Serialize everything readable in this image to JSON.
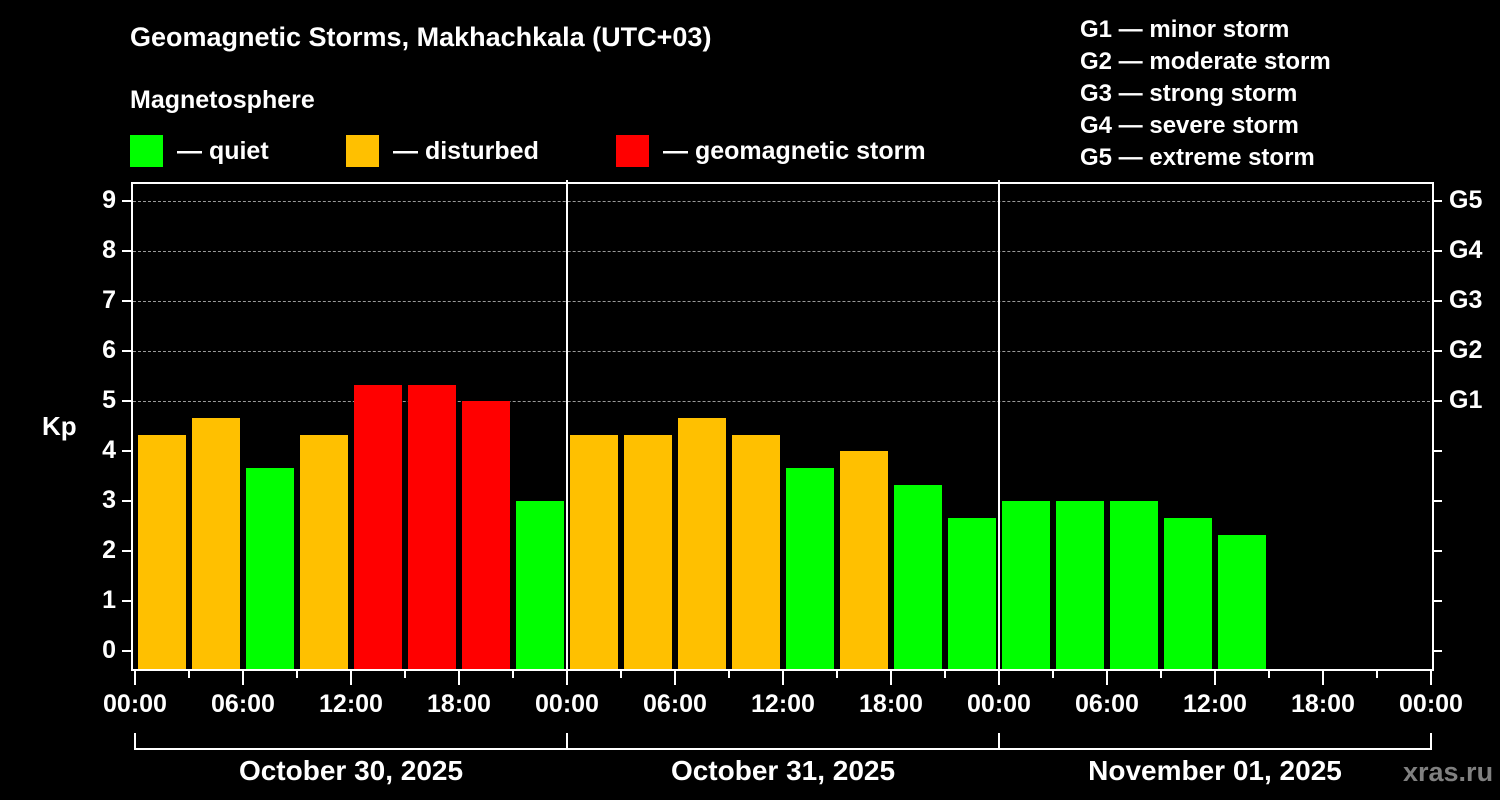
{
  "header": {
    "title": "Geomagnetic Storms, Makhachkala (UTC+03)",
    "subtitle": "Magnetosphere"
  },
  "legend": [
    {
      "label": "— quiet",
      "color": "#00FF00"
    },
    {
      "label": "— disturbed",
      "color": "#FFC000"
    },
    {
      "label": "— geomagnetic storm",
      "color": "#FF0000"
    }
  ],
  "scale": [
    "G1 — minor storm",
    "G2 — moderate storm",
    "G3 — strong storm",
    "G4 — severe storm",
    "G5 — extreme storm"
  ],
  "watermark": "xras.ru",
  "chart_data": {
    "type": "bar",
    "title": "Geomagnetic Storms, Makhachkala (UTC+03)",
    "subtitle": "Magnetosphere",
    "ylabel": "Kp",
    "xlabel": "",
    "ylim": [
      0,
      9
    ],
    "yticks": [
      0,
      1,
      2,
      3,
      4,
      5,
      6,
      7,
      8,
      9
    ],
    "right_axis_labels": [
      {
        "kp": 5,
        "label": "G1"
      },
      {
        "kp": 6,
        "label": "G2"
      },
      {
        "kp": 7,
        "label": "G3"
      },
      {
        "kp": 8,
        "label": "G4"
      },
      {
        "kp": 9,
        "label": "G5"
      }
    ],
    "grid": true,
    "legend_position": "top-left",
    "x_tick_labels": [
      "00:00",
      "06:00",
      "12:00",
      "18:00",
      "00:00",
      "06:00",
      "12:00",
      "18:00",
      "00:00",
      "06:00",
      "12:00",
      "18:00",
      "00:00"
    ],
    "dates": [
      "October 30, 2025",
      "October 31, 2025",
      "November 01, 2025"
    ],
    "interval_hours": 3,
    "categories": [
      "Oct 30 00:00",
      "Oct 30 03:00",
      "Oct 30 06:00",
      "Oct 30 09:00",
      "Oct 30 12:00",
      "Oct 30 15:00",
      "Oct 30 18:00",
      "Oct 30 21:00",
      "Oct 31 00:00",
      "Oct 31 03:00",
      "Oct 31 06:00",
      "Oct 31 09:00",
      "Oct 31 12:00",
      "Oct 31 15:00",
      "Oct 31 18:00",
      "Oct 31 21:00",
      "Nov 01 00:00",
      "Nov 01 03:00",
      "Nov 01 06:00",
      "Nov 01 09:00",
      "Nov 01 12:00"
    ],
    "values": [
      4.33,
      4.67,
      3.67,
      4.33,
      5.33,
      5.33,
      5.0,
      3.0,
      4.33,
      4.33,
      4.67,
      4.33,
      3.67,
      4.0,
      3.33,
      2.67,
      3.0,
      3.0,
      3.0,
      2.67,
      2.33
    ],
    "status": [
      "disturbed",
      "disturbed",
      "quiet",
      "disturbed",
      "storm",
      "storm",
      "storm",
      "quiet",
      "disturbed",
      "disturbed",
      "disturbed",
      "disturbed",
      "quiet",
      "disturbed",
      "quiet",
      "quiet",
      "quiet",
      "quiet",
      "quiet",
      "quiet",
      "quiet"
    ],
    "colors": {
      "quiet": "#00FF00",
      "disturbed": "#FFC000",
      "storm": "#FF0000"
    }
  }
}
